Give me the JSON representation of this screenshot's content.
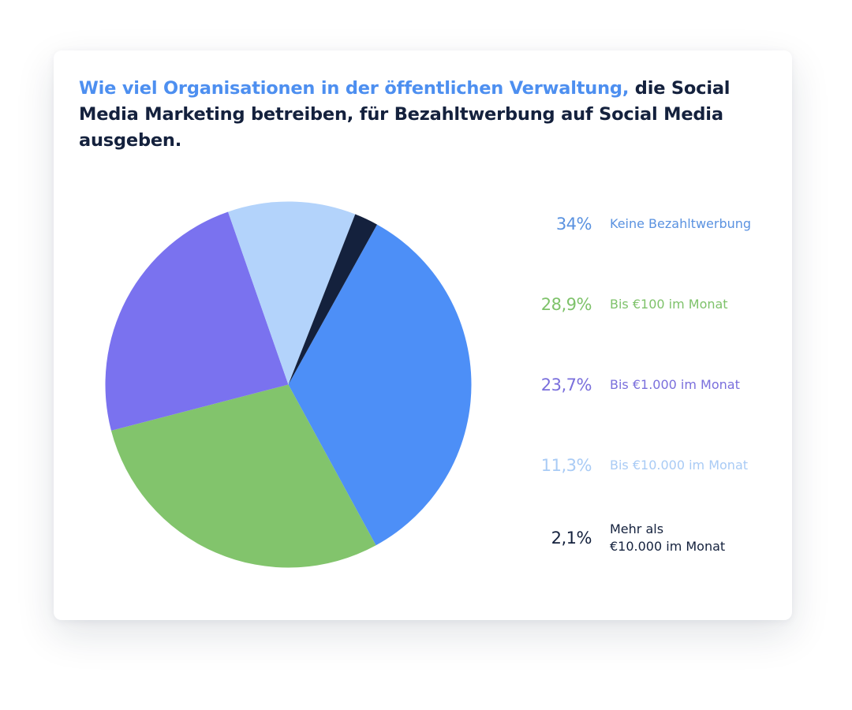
{
  "chart_data": {
    "type": "pie",
    "title_highlight": "Wie viel Organisationen in der öffentlichen Verwaltung,",
    "title_rest": " die Social Media Marketing betreiben, für Bezahltwerbung auf Social Media ausgeben.",
    "start_angle_deg": 29,
    "slices": [
      {
        "label": "Keine Bezahltwerbung",
        "value": 34,
        "value_label": "34%",
        "color": "#4d8ff7",
        "label_color": "#5a92e0"
      },
      {
        "label": "Bis €100 im Monat",
        "value": 28.9,
        "value_label": "28,9%",
        "color": "#82c46c",
        "label_color": "#7ec26a"
      },
      {
        "label": "Bis €1.000 im Monat",
        "value": 23.7,
        "value_label": "23,7%",
        "color": "#7a72ef",
        "label_color": "#7a6fdc"
      },
      {
        "label": "Bis €10.000 im Monat",
        "value": 11.3,
        "value_label": "11,3%",
        "color": "#b3d3fb",
        "label_color": "#a9cbf5"
      },
      {
        "label": "Mehr als\n€10.000 im Monat",
        "value": 2.1,
        "value_label": "2,1%",
        "color": "#14213d",
        "label_color": "#14213d"
      }
    ]
  }
}
